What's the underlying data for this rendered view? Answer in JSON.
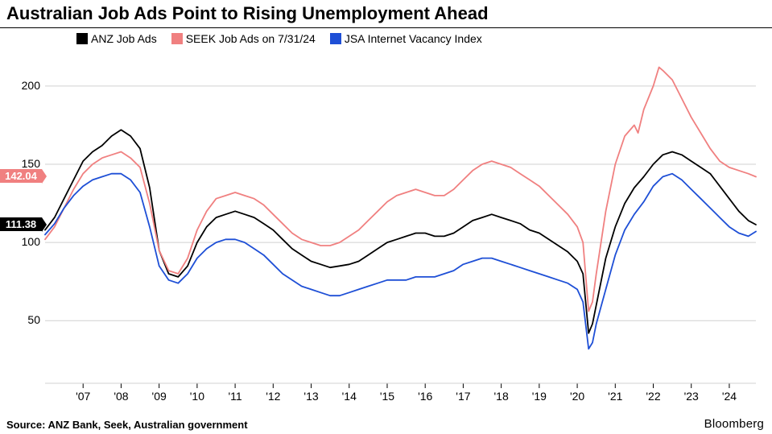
{
  "title": "Australian Job Ads Point to Rising Unemployment Ahead",
  "source": "Source: ANZ Bank, Seek, Australian government",
  "brand": "Bloomberg",
  "legend": {
    "items": [
      {
        "label": "ANZ Job Ads",
        "color": "#000000"
      },
      {
        "label": "SEEK Job Ads on 7/31/24",
        "color": "#f08080"
      },
      {
        "label": "JSA Internet Vacancy Index",
        "color": "#1e4fd6"
      }
    ]
  },
  "flags": [
    {
      "value": "142.04",
      "bg": "#f08080",
      "y": 142.04
    },
    {
      "value": "111.38",
      "bg": "#000000",
      "y": 111.38
    }
  ],
  "chart": {
    "type": "line",
    "x_domain": [
      2006.0,
      2024.7
    ],
    "y_domain": [
      10,
      220
    ],
    "y_ticks": [
      50,
      100,
      150,
      200
    ],
    "x_ticks": [
      "'07",
      "'08",
      "'09",
      "'10",
      "'11",
      "'12",
      "'13",
      "'14",
      "'15",
      "'16",
      "'17",
      "'18",
      "'19",
      "'20",
      "'21",
      "'22",
      "'23",
      "'24"
    ],
    "x_tick_positions": [
      2007,
      2008,
      2009,
      2010,
      2011,
      2012,
      2013,
      2014,
      2015,
      2016,
      2017,
      2018,
      2019,
      2020,
      2021,
      2022,
      2023,
      2024
    ],
    "grid_color": "#d0d0d0",
    "background_color": "#ffffff",
    "line_width": 1.8,
    "title_fontsize": 22,
    "tick_fontsize": 14,
    "legend_fontsize": 14,
    "source_fontsize": 13,
    "series": [
      {
        "name": "ANZ Job Ads",
        "color": "#000000",
        "points": [
          [
            2006.0,
            108
          ],
          [
            2006.25,
            116
          ],
          [
            2006.5,
            128
          ],
          [
            2006.75,
            140
          ],
          [
            2007.0,
            152
          ],
          [
            2007.25,
            158
          ],
          [
            2007.5,
            162
          ],
          [
            2007.75,
            168
          ],
          [
            2008.0,
            172
          ],
          [
            2008.25,
            168
          ],
          [
            2008.5,
            160
          ],
          [
            2008.75,
            135
          ],
          [
            2009.0,
            95
          ],
          [
            2009.25,
            80
          ],
          [
            2009.5,
            78
          ],
          [
            2009.75,
            85
          ],
          [
            2010.0,
            100
          ],
          [
            2010.25,
            110
          ],
          [
            2010.5,
            116
          ],
          [
            2010.75,
            118
          ],
          [
            2011.0,
            120
          ],
          [
            2011.25,
            118
          ],
          [
            2011.5,
            116
          ],
          [
            2011.75,
            112
          ],
          [
            2012.0,
            108
          ],
          [
            2012.25,
            102
          ],
          [
            2012.5,
            96
          ],
          [
            2012.75,
            92
          ],
          [
            2013.0,
            88
          ],
          [
            2013.25,
            86
          ],
          [
            2013.5,
            84
          ],
          [
            2013.75,
            85
          ],
          [
            2014.0,
            86
          ],
          [
            2014.25,
            88
          ],
          [
            2014.5,
            92
          ],
          [
            2014.75,
            96
          ],
          [
            2015.0,
            100
          ],
          [
            2015.25,
            102
          ],
          [
            2015.5,
            104
          ],
          [
            2015.75,
            106
          ],
          [
            2016.0,
            106
          ],
          [
            2016.25,
            104
          ],
          [
            2016.5,
            104
          ],
          [
            2016.75,
            106
          ],
          [
            2017.0,
            110
          ],
          [
            2017.25,
            114
          ],
          [
            2017.5,
            116
          ],
          [
            2017.75,
            118
          ],
          [
            2018.0,
            116
          ],
          [
            2018.25,
            114
          ],
          [
            2018.5,
            112
          ],
          [
            2018.75,
            108
          ],
          [
            2019.0,
            106
          ],
          [
            2019.25,
            102
          ],
          [
            2019.5,
            98
          ],
          [
            2019.75,
            94
          ],
          [
            2020.0,
            88
          ],
          [
            2020.15,
            80
          ],
          [
            2020.3,
            42
          ],
          [
            2020.4,
            48
          ],
          [
            2020.5,
            60
          ],
          [
            2020.75,
            90
          ],
          [
            2021.0,
            110
          ],
          [
            2021.25,
            125
          ],
          [
            2021.5,
            135
          ],
          [
            2021.75,
            142
          ],
          [
            2022.0,
            150
          ],
          [
            2022.25,
            156
          ],
          [
            2022.5,
            158
          ],
          [
            2022.75,
            156
          ],
          [
            2023.0,
            152
          ],
          [
            2023.25,
            148
          ],
          [
            2023.5,
            144
          ],
          [
            2023.75,
            136
          ],
          [
            2024.0,
            128
          ],
          [
            2024.25,
            120
          ],
          [
            2024.5,
            114
          ],
          [
            2024.7,
            111.38
          ]
        ]
      },
      {
        "name": "SEEK Job Ads on 7/31/24",
        "color": "#f08080",
        "points": [
          [
            2006.0,
            102
          ],
          [
            2006.25,
            110
          ],
          [
            2006.5,
            122
          ],
          [
            2006.75,
            134
          ],
          [
            2007.0,
            144
          ],
          [
            2007.25,
            150
          ],
          [
            2007.5,
            154
          ],
          [
            2007.75,
            156
          ],
          [
            2008.0,
            158
          ],
          [
            2008.25,
            154
          ],
          [
            2008.5,
            148
          ],
          [
            2008.75,
            125
          ],
          [
            2009.0,
            95
          ],
          [
            2009.25,
            82
          ],
          [
            2009.5,
            80
          ],
          [
            2009.75,
            90
          ],
          [
            2010.0,
            108
          ],
          [
            2010.25,
            120
          ],
          [
            2010.5,
            128
          ],
          [
            2010.75,
            130
          ],
          [
            2011.0,
            132
          ],
          [
            2011.25,
            130
          ],
          [
            2011.5,
            128
          ],
          [
            2011.75,
            124
          ],
          [
            2012.0,
            118
          ],
          [
            2012.25,
            112
          ],
          [
            2012.5,
            106
          ],
          [
            2012.75,
            102
          ],
          [
            2013.0,
            100
          ],
          [
            2013.25,
            98
          ],
          [
            2013.5,
            98
          ],
          [
            2013.75,
            100
          ],
          [
            2014.0,
            104
          ],
          [
            2014.25,
            108
          ],
          [
            2014.5,
            114
          ],
          [
            2014.75,
            120
          ],
          [
            2015.0,
            126
          ],
          [
            2015.25,
            130
          ],
          [
            2015.5,
            132
          ],
          [
            2015.75,
            134
          ],
          [
            2016.0,
            132
          ],
          [
            2016.25,
            130
          ],
          [
            2016.5,
            130
          ],
          [
            2016.75,
            134
          ],
          [
            2017.0,
            140
          ],
          [
            2017.25,
            146
          ],
          [
            2017.5,
            150
          ],
          [
            2017.75,
            152
          ],
          [
            2018.0,
            150
          ],
          [
            2018.25,
            148
          ],
          [
            2018.5,
            144
          ],
          [
            2018.75,
            140
          ],
          [
            2019.0,
            136
          ],
          [
            2019.25,
            130
          ],
          [
            2019.5,
            124
          ],
          [
            2019.75,
            118
          ],
          [
            2020.0,
            110
          ],
          [
            2020.15,
            100
          ],
          [
            2020.3,
            56
          ],
          [
            2020.4,
            62
          ],
          [
            2020.5,
            80
          ],
          [
            2020.75,
            120
          ],
          [
            2021.0,
            150
          ],
          [
            2021.25,
            168
          ],
          [
            2021.5,
            175
          ],
          [
            2021.6,
            170
          ],
          [
            2021.75,
            185
          ],
          [
            2022.0,
            200
          ],
          [
            2022.15,
            212
          ],
          [
            2022.25,
            210
          ],
          [
            2022.5,
            204
          ],
          [
            2022.75,
            192
          ],
          [
            2023.0,
            180
          ],
          [
            2023.25,
            170
          ],
          [
            2023.5,
            160
          ],
          [
            2023.75,
            152
          ],
          [
            2024.0,
            148
          ],
          [
            2024.25,
            146
          ],
          [
            2024.5,
            144
          ],
          [
            2024.7,
            142.04
          ]
        ]
      },
      {
        "name": "JSA Internet Vacancy Index",
        "color": "#1e4fd6",
        "points": [
          [
            2006.0,
            105
          ],
          [
            2006.25,
            112
          ],
          [
            2006.5,
            122
          ],
          [
            2006.75,
            130
          ],
          [
            2007.0,
            136
          ],
          [
            2007.25,
            140
          ],
          [
            2007.5,
            142
          ],
          [
            2007.75,
            144
          ],
          [
            2008.0,
            144
          ],
          [
            2008.25,
            140
          ],
          [
            2008.5,
            132
          ],
          [
            2008.75,
            110
          ],
          [
            2009.0,
            85
          ],
          [
            2009.25,
            76
          ],
          [
            2009.5,
            74
          ],
          [
            2009.75,
            80
          ],
          [
            2010.0,
            90
          ],
          [
            2010.25,
            96
          ],
          [
            2010.5,
            100
          ],
          [
            2010.75,
            102
          ],
          [
            2011.0,
            102
          ],
          [
            2011.25,
            100
          ],
          [
            2011.5,
            96
          ],
          [
            2011.75,
            92
          ],
          [
            2012.0,
            86
          ],
          [
            2012.25,
            80
          ],
          [
            2012.5,
            76
          ],
          [
            2012.75,
            72
          ],
          [
            2013.0,
            70
          ],
          [
            2013.25,
            68
          ],
          [
            2013.5,
            66
          ],
          [
            2013.75,
            66
          ],
          [
            2014.0,
            68
          ],
          [
            2014.25,
            70
          ],
          [
            2014.5,
            72
          ],
          [
            2014.75,
            74
          ],
          [
            2015.0,
            76
          ],
          [
            2015.25,
            76
          ],
          [
            2015.5,
            76
          ],
          [
            2015.75,
            78
          ],
          [
            2016.0,
            78
          ],
          [
            2016.25,
            78
          ],
          [
            2016.5,
            80
          ],
          [
            2016.75,
            82
          ],
          [
            2017.0,
            86
          ],
          [
            2017.25,
            88
          ],
          [
            2017.5,
            90
          ],
          [
            2017.75,
            90
          ],
          [
            2018.0,
            88
          ],
          [
            2018.25,
            86
          ],
          [
            2018.5,
            84
          ],
          [
            2018.75,
            82
          ],
          [
            2019.0,
            80
          ],
          [
            2019.25,
            78
          ],
          [
            2019.5,
            76
          ],
          [
            2019.75,
            74
          ],
          [
            2020.0,
            70
          ],
          [
            2020.15,
            62
          ],
          [
            2020.3,
            32
          ],
          [
            2020.4,
            36
          ],
          [
            2020.5,
            48
          ],
          [
            2020.75,
            70
          ],
          [
            2021.0,
            92
          ],
          [
            2021.25,
            108
          ],
          [
            2021.5,
            118
          ],
          [
            2021.75,
            126
          ],
          [
            2022.0,
            136
          ],
          [
            2022.25,
            142
          ],
          [
            2022.5,
            144
          ],
          [
            2022.75,
            140
          ],
          [
            2023.0,
            134
          ],
          [
            2023.25,
            128
          ],
          [
            2023.5,
            122
          ],
          [
            2023.75,
            116
          ],
          [
            2024.0,
            110
          ],
          [
            2024.25,
            106
          ],
          [
            2024.5,
            104
          ],
          [
            2024.7,
            107
          ]
        ]
      }
    ]
  }
}
